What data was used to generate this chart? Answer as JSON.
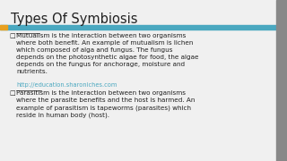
{
  "title": "Types Of Symbiosis",
  "bg_color": "#f0f0f0",
  "title_color": "#222222",
  "header_bar_color": "#4aa8c0",
  "header_bar_accent": "#e8a020",
  "body_text_color": "#222222",
  "link_color": "#4aa8c0",
  "bullet1_label": "Mutualism",
  "bullet1_text": " is the interaction between two organisms\nwhere both benefit. An example of mutualism is lichen\nwhich composed of alga and fungus. The fungus\ndepends on the photosynthetic algae for food, the algae\ndepends on the fungus for anchorage, moisture and\nnutrients.",
  "link_text": "http://education.sharoniches.com",
  "bullet2_label": "Parasitism",
  "bullet2_text": " is the interaction between two organisms\nwhere the parasite benefits and the host is harmed. An\nexample of parasitism is tapeworms (parasites) which\nreside in human body (host).",
  "scrollbar_color": "#888888"
}
